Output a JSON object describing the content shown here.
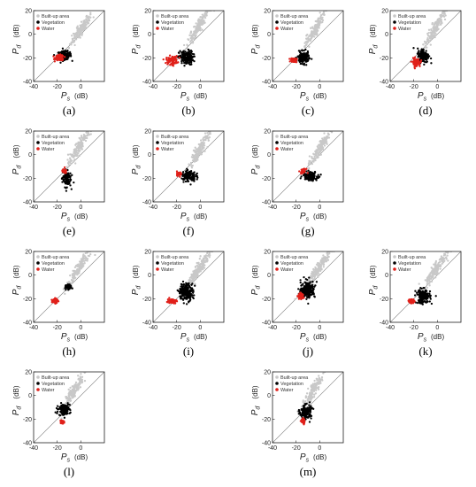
{
  "colors": {
    "built_up": "#c8c8c8",
    "vegetation": "#000000",
    "water": "#e0201a",
    "frame": "#222222",
    "diagonal": "#777777"
  },
  "chart_data": [
    {
      "type": "scatter",
      "panel_label": "(a)",
      "xlabel": "P",
      "xlabel_sub": "s",
      "ylabel": "P",
      "ylabel_sub": "d",
      "unit": "(dB)",
      "xlim": [
        -40,
        20
      ],
      "ylim": [
        -40,
        20
      ],
      "xticks": [
        -40,
        -20,
        0
      ],
      "yticks": [
        -40,
        -20,
        0,
        20
      ],
      "legend": {
        "position": "top-left",
        "entries": [
          "Built-up area",
          "Vegetation",
          "Water"
        ]
      },
      "diagonal": true,
      "series": [
        {
          "name": "Built-up area",
          "center": [
            0,
            4
          ],
          "spread": [
            4,
            6
          ],
          "shape": "diagonal",
          "count": 160
        },
        {
          "name": "Vegetation",
          "center": [
            -14,
            -18
          ],
          "spread": [
            5,
            3
          ],
          "shape": "blob",
          "count": 160
        },
        {
          "name": "Water",
          "center": [
            -18,
            -20
          ],
          "spread": [
            3,
            2
          ],
          "shape": "blob",
          "count": 90
        }
      ]
    },
    {
      "type": "scatter",
      "panel_label": "(b)",
      "xlabel": "P",
      "xlabel_sub": "s",
      "ylabel": "P",
      "ylabel_sub": "d",
      "unit": "(dB)",
      "xlim": [
        -40,
        20
      ],
      "ylim": [
        -40,
        20
      ],
      "xticks": [
        -40,
        -20,
        0
      ],
      "yticks": [
        -40,
        -20,
        0,
        20
      ],
      "legend": {
        "position": "top-left",
        "entries": [
          "Built-up area",
          "Vegetation",
          "Water"
        ]
      },
      "diagonal": true,
      "series": [
        {
          "name": "Built-up area",
          "center": [
            -2,
            6
          ],
          "spread": [
            4,
            7
          ],
          "shape": "diagonal",
          "count": 160
        },
        {
          "name": "Vegetation",
          "center": [
            -12,
            -20
          ],
          "spread": [
            5,
            5
          ],
          "shape": "blob",
          "count": 170
        },
        {
          "name": "Water",
          "center": [
            -24,
            -22
          ],
          "spread": [
            4,
            3
          ],
          "shape": "blob",
          "count": 90
        }
      ]
    },
    {
      "type": "scatter",
      "panel_label": "(c)",
      "xlabel": "P",
      "xlabel_sub": "s",
      "ylabel": "P",
      "ylabel_sub": "d",
      "unit": "(dB)",
      "xlim": [
        -40,
        20
      ],
      "ylim": [
        -40,
        20
      ],
      "xticks": [
        -40,
        -20,
        0
      ],
      "yticks": [
        -40,
        -20,
        0,
        20
      ],
      "legend": {
        "position": "top-left",
        "entries": [
          "Built-up area",
          "Vegetation",
          "Water"
        ]
      },
      "diagonal": true,
      "series": [
        {
          "name": "Built-up area",
          "center": [
            -4,
            4
          ],
          "spread": [
            4,
            7
          ],
          "shape": "diagonal",
          "count": 160
        },
        {
          "name": "Vegetation",
          "center": [
            -14,
            -20
          ],
          "spread": [
            4,
            4
          ],
          "shape": "blob",
          "count": 160
        },
        {
          "name": "Water",
          "center": [
            -22,
            -22
          ],
          "spread": [
            2,
            1.5
          ],
          "shape": "blob",
          "count": 70
        }
      ]
    },
    {
      "type": "scatter",
      "panel_label": "(d)",
      "xlabel": "P",
      "xlabel_sub": "s",
      "ylabel": "P",
      "ylabel_sub": "d",
      "unit": "(dB)",
      "xlim": [
        -40,
        20
      ],
      "ylim": [
        -40,
        20
      ],
      "xticks": [
        -40,
        -20,
        0
      ],
      "yticks": [
        -40,
        -20,
        0,
        20
      ],
      "legend": {
        "position": "top-left",
        "entries": [
          "Built-up area",
          "Vegetation",
          "Water"
        ]
      },
      "diagonal": true,
      "series": [
        {
          "name": "Built-up area",
          "center": [
            -2,
            5
          ],
          "spread": [
            4,
            7
          ],
          "shape": "diagonal",
          "count": 160
        },
        {
          "name": "Vegetation",
          "center": [
            -12,
            -18
          ],
          "spread": [
            4,
            5
          ],
          "shape": "blob",
          "count": 160
        },
        {
          "name": "Water",
          "center": [
            -18,
            -24
          ],
          "spread": [
            3,
            3
          ],
          "shape": "blob",
          "count": 80
        }
      ]
    },
    {
      "type": "scatter",
      "panel_label": "(e)",
      "xlabel": "P",
      "xlabel_sub": "s",
      "ylabel": "P",
      "ylabel_sub": "d",
      "unit": "(dB)",
      "xlim": [
        -40,
        20
      ],
      "ylim": [
        -40,
        20
      ],
      "xticks": [
        -40,
        -20,
        0
      ],
      "yticks": [
        -40,
        -20,
        0,
        20
      ],
      "legend": {
        "position": "top-left",
        "entries": [
          "Built-up area",
          "Vegetation",
          "Water"
        ]
      },
      "diagonal": true,
      "series": [
        {
          "name": "Built-up area",
          "center": [
            -2,
            6
          ],
          "spread": [
            4,
            7
          ],
          "shape": "diagonal",
          "count": 150
        },
        {
          "name": "Vegetation",
          "center": [
            -12,
            -20
          ],
          "spread": [
            3,
            6
          ],
          "shape": "blob",
          "count": 110
        },
        {
          "name": "Water",
          "center": [
            -14,
            -14
          ],
          "spread": [
            1.5,
            1.5
          ],
          "shape": "blob",
          "count": 30
        }
      ]
    },
    {
      "type": "scatter",
      "panel_label": "(f)",
      "xlabel": "P",
      "xlabel_sub": "s",
      "ylabel": "P",
      "ylabel_sub": "d",
      "unit": "(dB)",
      "xlim": [
        -40,
        20
      ],
      "ylim": [
        -40,
        20
      ],
      "xticks": [
        -40,
        -20,
        0
      ],
      "yticks": [
        -40,
        -20,
        0,
        20
      ],
      "legend": {
        "position": "top-left",
        "entries": [
          "Built-up area",
          "Vegetation",
          "Water"
        ]
      },
      "diagonal": true,
      "series": [
        {
          "name": "Built-up area",
          "center": [
            0,
            5
          ],
          "spread": [
            4,
            7
          ],
          "shape": "diagonal",
          "count": 150
        },
        {
          "name": "Vegetation",
          "center": [
            -10,
            -18
          ],
          "spread": [
            5,
            4
          ],
          "shape": "blob",
          "count": 130
        },
        {
          "name": "Water",
          "center": [
            -18,
            -16
          ],
          "spread": [
            2,
            1.5
          ],
          "shape": "blob",
          "count": 30
        }
      ]
    },
    {
      "type": "scatter",
      "panel_label": "(g)",
      "xlabel": "P",
      "xlabel_sub": "s",
      "ylabel": "P",
      "ylabel_sub": "d",
      "unit": "(dB)",
      "xlim": [
        -40,
        20
      ],
      "ylim": [
        -40,
        20
      ],
      "xticks": [
        -40,
        -20,
        0
      ],
      "yticks": [
        -40,
        -20,
        0,
        20
      ],
      "legend": {
        "position": "top-left",
        "entries": [
          "Built-up area",
          "Vegetation",
          "Water"
        ]
      },
      "diagonal": true,
      "series": [
        {
          "name": "Built-up area",
          "center": [
            0,
            5
          ],
          "spread": [
            4,
            7
          ],
          "shape": "diagonal",
          "count": 150
        },
        {
          "name": "Vegetation",
          "center": [
            -8,
            -18
          ],
          "spread": [
            5,
            3
          ],
          "shape": "blob",
          "count": 130
        },
        {
          "name": "Water",
          "center": [
            -14,
            -14
          ],
          "spread": [
            2,
            1.5
          ],
          "shape": "blob",
          "count": 30
        }
      ]
    },
    {
      "type": "scatter",
      "panel_label": "(h)",
      "xlabel": "P",
      "xlabel_sub": "s",
      "ylabel": "P",
      "ylabel_sub": "d",
      "unit": "(dB)",
      "xlim": [
        -40,
        20
      ],
      "ylim": [
        -40,
        20
      ],
      "xticks": [
        -40,
        -20,
        0
      ],
      "yticks": [
        -40,
        -20,
        0,
        20
      ],
      "legend": {
        "position": "top-left",
        "entries": [
          "Built-up area",
          "Vegetation",
          "Water"
        ]
      },
      "diagonal": true,
      "series": [
        {
          "name": "Built-up area",
          "center": [
            -2,
            5
          ],
          "spread": [
            4,
            7
          ],
          "shape": "diagonal",
          "count": 150
        },
        {
          "name": "Vegetation",
          "center": [
            -10,
            -10
          ],
          "spread": [
            2,
            1.5
          ],
          "shape": "blob",
          "count": 80
        },
        {
          "name": "Water",
          "center": [
            -22,
            -22
          ],
          "spread": [
            2,
            1.5
          ],
          "shape": "blob",
          "count": 80
        }
      ]
    },
    {
      "type": "scatter",
      "panel_label": "(i)",
      "xlabel": "P",
      "xlabel_sub": "s",
      "ylabel": "P",
      "ylabel_sub": "d",
      "unit": "(dB)",
      "xlim": [
        -40,
        20
      ],
      "ylim": [
        -40,
        20
      ],
      "xticks": [
        -40,
        -20,
        0
      ],
      "yticks": [
        -40,
        -20,
        0,
        20
      ],
      "legend": {
        "position": "top-left",
        "entries": [
          "Built-up area",
          "Vegetation",
          "Water"
        ]
      },
      "diagonal": true,
      "series": [
        {
          "name": "Built-up area",
          "center": [
            -2,
            4
          ],
          "spread": [
            5,
            8
          ],
          "shape": "diagonal",
          "count": 190
        },
        {
          "name": "Vegetation",
          "center": [
            -12,
            -14
          ],
          "spread": [
            5,
            6
          ],
          "shape": "blob",
          "count": 200
        },
        {
          "name": "Water",
          "center": [
            -24,
            -22
          ],
          "spread": [
            3,
            1.5
          ],
          "shape": "blob",
          "count": 90
        }
      ]
    },
    {
      "type": "scatter",
      "panel_label": "(j)",
      "xlabel": "P",
      "xlabel_sub": "s",
      "ylabel": "P",
      "ylabel_sub": "d",
      "unit": "(dB)",
      "xlim": [
        -40,
        20
      ],
      "ylim": [
        -40,
        20
      ],
      "xticks": [
        -40,
        -20,
        0
      ],
      "yticks": [
        -40,
        -20,
        0,
        20
      ],
      "legend": {
        "position": "top-left",
        "entries": [
          "Built-up area",
          "Vegetation",
          "Water"
        ]
      },
      "diagonal": true,
      "series": [
        {
          "name": "Built-up area",
          "center": [
            -2,
            4
          ],
          "spread": [
            5,
            8
          ],
          "shape": "diagonal",
          "count": 190
        },
        {
          "name": "Vegetation",
          "center": [
            -10,
            -12
          ],
          "spread": [
            5,
            6
          ],
          "shape": "blob",
          "count": 200
        },
        {
          "name": "Water",
          "center": [
            -16,
            -18
          ],
          "spread": [
            2,
            2
          ],
          "shape": "blob",
          "count": 60
        }
      ]
    },
    {
      "type": "scatter",
      "panel_label": "(k)",
      "xlabel": "P",
      "xlabel_sub": "s",
      "ylabel": "P",
      "ylabel_sub": "d",
      "unit": "(dB)",
      "xlim": [
        -40,
        20
      ],
      "ylim": [
        -40,
        20
      ],
      "xticks": [
        -40,
        -20,
        0
      ],
      "yticks": [
        -40,
        -20,
        0,
        20
      ],
      "legend": {
        "position": "top-left",
        "entries": [
          "Built-up area",
          "Vegetation",
          "Water"
        ]
      },
      "diagonal": true,
      "series": [
        {
          "name": "Built-up area",
          "center": [
            -2,
            4
          ],
          "spread": [
            5,
            8
          ],
          "shape": "diagonal",
          "count": 170
        },
        {
          "name": "Vegetation",
          "center": [
            -12,
            -18
          ],
          "spread": [
            5,
            5
          ],
          "shape": "blob",
          "count": 170
        },
        {
          "name": "Water",
          "center": [
            -22,
            -22
          ],
          "spread": [
            2,
            1.5
          ],
          "shape": "blob",
          "count": 50
        }
      ]
    },
    {
      "type": "scatter",
      "panel_label": "(l)",
      "xlabel": "P",
      "xlabel_sub": "s",
      "ylabel": "P",
      "ylabel_sub": "d",
      "unit": "(dB)",
      "xlim": [
        -40,
        20
      ],
      "ylim": [
        -40,
        20
      ],
      "xticks": [
        -40,
        -20,
        0
      ],
      "yticks": [
        -40,
        -20,
        0,
        20
      ],
      "legend": {
        "position": "top-left",
        "entries": [
          "Built-up area",
          "Vegetation",
          "Water"
        ]
      },
      "diagonal": true,
      "series": [
        {
          "name": "Built-up area",
          "center": [
            -6,
            4
          ],
          "spread": [
            4,
            7
          ],
          "shape": "diagonal",
          "count": 150
        },
        {
          "name": "Vegetation",
          "center": [
            -14,
            -12
          ],
          "spread": [
            4,
            4
          ],
          "shape": "blob",
          "count": 130
        },
        {
          "name": "Water",
          "center": [
            -16,
            -22
          ],
          "spread": [
            1.2,
            1.5
          ],
          "shape": "blob",
          "count": 40
        }
      ]
    },
    {
      "type": "scatter",
      "panel_label": "(m)",
      "xlabel": "P",
      "xlabel_sub": "s",
      "ylabel": "P",
      "ylabel_sub": "d",
      "unit": "(dB)",
      "xlim": [
        -40,
        20
      ],
      "ylim": [
        -40,
        20
      ],
      "xticks": [
        -40,
        -20,
        0
      ],
      "yticks": [
        -40,
        -20,
        0,
        20
      ],
      "legend": {
        "position": "top-left",
        "entries": [
          "Built-up area",
          "Vegetation",
          "Water"
        ]
      },
      "diagonal": true,
      "series": [
        {
          "name": "Built-up area",
          "center": [
            -6,
            4
          ],
          "spread": [
            4,
            7
          ],
          "shape": "diagonal",
          "count": 150
        },
        {
          "name": "Vegetation",
          "center": [
            -12,
            -14
          ],
          "spread": [
            4,
            5
          ],
          "shape": "blob",
          "count": 150
        },
        {
          "name": "Water",
          "center": [
            -14,
            -22
          ],
          "spread": [
            1.2,
            1.8
          ],
          "shape": "blob",
          "count": 40
        }
      ]
    }
  ]
}
